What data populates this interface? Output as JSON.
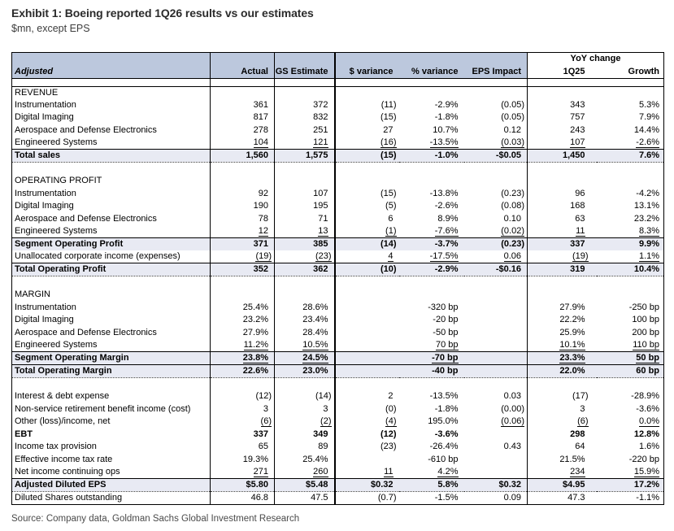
{
  "header": {
    "title": "Exhibit 1: Boeing reported 1Q26 results vs our estimates",
    "subtitle": "$mn, except EPS"
  },
  "source": "Source: Company data, Goldman Sachs Global Investment Research",
  "colors": {
    "header_bg": "#bcc8dd",
    "total_row_bg": "#e8eaf3"
  },
  "table": {
    "group_header": "YoY change",
    "columns": [
      "Adjusted",
      "Actual",
      "GS Estimate",
      "$ variance",
      "% variance",
      "EPS Impact",
      "1Q25",
      "Growth"
    ],
    "rows": [
      {
        "label": "REVENUE",
        "style": "section",
        "values": [
          "",
          "",
          "",
          "",
          "",
          "",
          ""
        ]
      },
      {
        "label": "Instrumentation",
        "style": "item",
        "values": [
          "361",
          "372",
          "(11)",
          "-2.9%",
          "(0.05)",
          "343",
          "5.3%"
        ]
      },
      {
        "label": "Digital Imaging",
        "style": "item",
        "values": [
          "817",
          "832",
          "(15)",
          "-1.8%",
          "(0.05)",
          "757",
          "7.9%"
        ]
      },
      {
        "label": "Aerospace and Defense Electronics",
        "style": "item",
        "values": [
          "278",
          "251",
          "27",
          "10.7%",
          "0.12",
          "243",
          "14.4%"
        ]
      },
      {
        "label": "Engineered Systems",
        "style": "item",
        "values": [
          "104",
          "121",
          "(16)",
          "-13.5%",
          "(0.03)",
          "107",
          "-2.6%"
        ],
        "u": [
          0,
          1,
          2,
          3,
          4,
          5,
          6
        ]
      },
      {
        "label": "Total sales",
        "style": "total dotted",
        "values": [
          "1,560",
          "1,575",
          "(15)",
          "-1.0%",
          "-$0.05",
          "1,450",
          "7.6%"
        ]
      },
      {
        "style": "spacer",
        "label": "",
        "values": [
          "",
          "",
          "",
          "",
          "",
          "",
          ""
        ]
      },
      {
        "label": "OPERATING PROFIT",
        "style": "section",
        "values": [
          "",
          "",
          "",
          "",
          "",
          "",
          ""
        ]
      },
      {
        "label": "Instrumentation",
        "style": "item",
        "values": [
          "92",
          "107",
          "(15)",
          "-13.8%",
          "(0.23)",
          "96",
          "-4.2%"
        ]
      },
      {
        "label": "Digital Imaging",
        "style": "item",
        "values": [
          "190",
          "195",
          "(5)",
          "-2.6%",
          "(0.08)",
          "168",
          "13.1%"
        ]
      },
      {
        "label": "Aerospace and Defense Electronics",
        "style": "item",
        "values": [
          "78",
          "71",
          "6",
          "8.9%",
          "0.10",
          "63",
          "23.2%"
        ]
      },
      {
        "label": "Engineered Systems",
        "style": "item",
        "values": [
          "12",
          "13",
          "(1)",
          "-7.6%",
          "(0.02)",
          "11",
          "8.3%"
        ],
        "u": [
          0,
          1,
          2,
          3,
          4,
          5,
          6
        ]
      },
      {
        "label": "Segment Operating Profit",
        "style": "total",
        "values": [
          "371",
          "385",
          "(14)",
          "-3.7%",
          "(0.23)",
          "337",
          "9.9%"
        ]
      },
      {
        "label": "Unallocated corporate income (expenses)",
        "style": "item",
        "values": [
          "(19)",
          "(23)",
          "4",
          "-17.5%",
          "0.06",
          "(19)",
          "1.1%"
        ],
        "u": [
          0,
          1,
          2,
          3,
          4,
          5,
          6
        ]
      },
      {
        "label": "Total Operating Profit",
        "style": "total dotted",
        "values": [
          "352",
          "362",
          "(10)",
          "-2.9%",
          "-$0.16",
          "319",
          "10.4%"
        ]
      },
      {
        "style": "spacer",
        "label": "",
        "values": [
          "",
          "",
          "",
          "",
          "",
          "",
          ""
        ]
      },
      {
        "label": "MARGIN",
        "style": "section",
        "values": [
          "",
          "",
          "",
          "",
          "",
          "",
          ""
        ]
      },
      {
        "label": "Instrumentation",
        "style": "item",
        "values": [
          "25.4%",
          "28.6%",
          "",
          "-320 bp",
          "",
          "27.9%",
          "-250 bp"
        ]
      },
      {
        "label": "Digital Imaging",
        "style": "item",
        "values": [
          "23.2%",
          "23.4%",
          "",
          "-20 bp",
          "",
          "22.2%",
          "100 bp"
        ]
      },
      {
        "label": "Aerospace and Defense Electronics",
        "style": "item",
        "values": [
          "27.9%",
          "28.4%",
          "",
          "-50 bp",
          "",
          "25.9%",
          "200 bp"
        ]
      },
      {
        "label": "Engineered Systems",
        "style": "item",
        "values": [
          "11.2%",
          "10.5%",
          "",
          "70 bp",
          "",
          "10.1%",
          "110 bp"
        ],
        "u": [
          0,
          1,
          3,
          5,
          6
        ]
      },
      {
        "label": "Segment Operating Margin",
        "style": "total",
        "values": [
          "23.8%",
          "24.5%",
          "",
          "-70 bp",
          "",
          "23.3%",
          "50 bp"
        ],
        "u": [
          0,
          1,
          3,
          5,
          6
        ]
      },
      {
        "label": "Total Operating Margin",
        "style": "total dotted",
        "values": [
          "22.6%",
          "23.0%",
          "",
          "-40 bp",
          "",
          "22.0%",
          "60 bp"
        ]
      },
      {
        "style": "spacer",
        "label": "",
        "values": [
          "",
          "",
          "",
          "",
          "",
          "",
          ""
        ]
      },
      {
        "label": "Interest & debt expense",
        "style": "item",
        "values": [
          "(12)",
          "(14)",
          "2",
          "-13.5%",
          "0.03",
          "(17)",
          "-28.9%"
        ]
      },
      {
        "label": "Non-service retirement benefit income (cost)",
        "style": "item",
        "values": [
          "3",
          "3",
          "(0)",
          "-1.8%",
          "(0.00)",
          "3",
          "-3.6%"
        ]
      },
      {
        "label": "Other (loss)/income, net",
        "style": "item",
        "values": [
          "(6)",
          "(2)",
          "(4)",
          "195.0%",
          "(0.06)",
          "(6)",
          "0.0%"
        ],
        "u": [
          0,
          1,
          2,
          4,
          5,
          6
        ]
      },
      {
        "label": "EBT",
        "style": "bold",
        "values": [
          "337",
          "349",
          "(12)",
          "-3.6%",
          "",
          "298",
          "12.8%"
        ]
      },
      {
        "label": "Income tax provision",
        "style": "item",
        "values": [
          "65",
          "89",
          "(23)",
          "-26.4%",
          "0.43",
          "64",
          "1.6%"
        ]
      },
      {
        "label": "Effective income tax rate",
        "style": "item",
        "values": [
          "19.3%",
          "25.4%",
          "",
          "-610 bp",
          "",
          "21.5%",
          "-220 bp"
        ]
      },
      {
        "label": "Net income continuing ops",
        "style": "item",
        "values": [
          "271",
          "260",
          "11",
          "4.2%",
          "",
          "234",
          "15.9%"
        ],
        "u": [
          0,
          1,
          2,
          3,
          5,
          6
        ]
      },
      {
        "label": "Adjusted Diluted EPS",
        "style": "total dotted",
        "values": [
          "$5.80",
          "$5.48",
          "$0.32",
          "5.8%",
          "$0.32",
          "$4.95",
          "17.2%"
        ]
      },
      {
        "label": "Diluted Shares outstanding",
        "style": "item",
        "values": [
          "46.8",
          "47.5",
          "(0.7)",
          "-1.5%",
          "0.09",
          "47.3",
          "-1.1%"
        ]
      }
    ]
  }
}
